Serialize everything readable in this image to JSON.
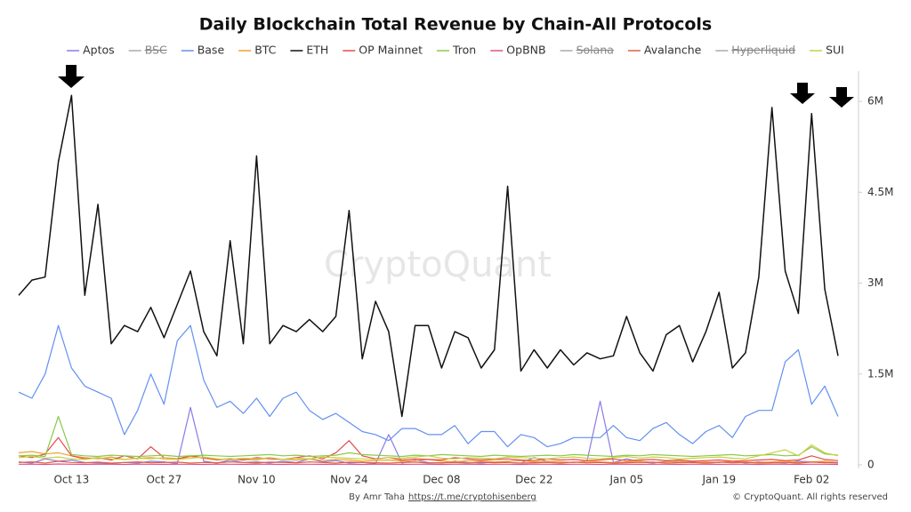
{
  "chart_data": {
    "type": "line",
    "title": "Daily Blockchain Total Revenue by Chain-All Protocols",
    "watermark": "CryptoQuant",
    "credit": "By Amr Taha",
    "credit_link": "https://t.me/cryptohisenberg",
    "copyright": "© CryptoQuant. All rights reserved",
    "grid": false,
    "legend": "top",
    "ylim": [
      0,
      6500000
    ],
    "yticks": [
      0,
      {
        "value": 1500000,
        "label": "1.5M"
      },
      {
        "value": 3000000,
        "label": "3M"
      },
      {
        "value": 4500000,
        "label": "4.5M"
      },
      {
        "value": 6000000,
        "label": "6M"
      }
    ],
    "categories": [
      null,
      null,
      null,
      null,
      "Oct 13",
      null,
      null,
      null,
      null,
      null,
      null,
      "Oct 27",
      null,
      null,
      null,
      null,
      null,
      null,
      "Nov 10",
      null,
      null,
      null,
      null,
      null,
      null,
      "Nov 24",
      null,
      null,
      null,
      null,
      null,
      null,
      "Dec 08",
      null,
      null,
      null,
      null,
      null,
      null,
      "Dec 22",
      null,
      null,
      null,
      null,
      null,
      null,
      "Jan 05",
      null,
      null,
      null,
      null,
      null,
      null,
      "Jan 19",
      null,
      null,
      null,
      null,
      null,
      null,
      "Feb 02",
      null,
      null
    ],
    "series": [
      {
        "name": "Aptos",
        "color": "#8c7ae6",
        "values": [
          50000,
          30000,
          100000,
          60000,
          80000,
          40000,
          30000,
          20000,
          40000,
          30000,
          60000,
          50000,
          20000,
          950000,
          60000,
          30000,
          80000,
          40000,
          50000,
          30000,
          60000,
          40000,
          100000,
          50000,
          70000,
          30000,
          40000,
          20000,
          500000,
          30000,
          80000,
          40000,
          30000,
          60000,
          40000,
          30000,
          50000,
          40000,
          30000,
          120000,
          60000,
          50000,
          40000,
          60000,
          1050000,
          40000,
          100000,
          50000,
          30000,
          60000,
          40000,
          50000,
          30000,
          40000,
          60000,
          30000,
          50000,
          40000,
          30000,
          60000,
          50000,
          40000,
          30000
        ]
      },
      {
        "name": "BSC",
        "color": "#aaaaaa",
        "hidden": true
      },
      {
        "name": "Base",
        "color": "#6390f0",
        "values": [
          1200000,
          1100000,
          1500000,
          2300000,
          1600000,
          1300000,
          1200000,
          1100000,
          500000,
          900000,
          1500000,
          1000000,
          2050000,
          2300000,
          1400000,
          950000,
          1050000,
          850000,
          1100000,
          800000,
          1100000,
          1200000,
          900000,
          750000,
          850000,
          700000,
          550000,
          500000,
          400000,
          600000,
          600000,
          500000,
          500000,
          650000,
          350000,
          550000,
          550000,
          300000,
          500000,
          450000,
          300000,
          350000,
          450000,
          450000,
          450000,
          650000,
          450000,
          400000,
          600000,
          700000,
          500000,
          350000,
          550000,
          650000,
          450000,
          800000,
          900000,
          900000,
          1700000,
          1900000,
          1000000,
          1300000,
          800000
        ]
      },
      {
        "name": "BTC",
        "color": "#f0a030",
        "values": [
          200000,
          220000,
          180000,
          200000,
          150000,
          120000,
          100000,
          130000,
          90000,
          110000,
          120000,
          100000,
          90000,
          140000,
          110000,
          80000,
          100000,
          90000,
          80000,
          120000,
          90000,
          80000,
          100000,
          70000,
          90000,
          80000,
          60000,
          70000,
          80000,
          60000,
          70000,
          90000,
          60000,
          50000,
          70000,
          60000,
          50000,
          60000,
          70000,
          50000,
          60000,
          50000,
          40000,
          60000,
          50000,
          40000,
          50000,
          60000,
          40000,
          50000,
          60000,
          40000,
          50000,
          40000,
          60000,
          50000,
          40000,
          50000,
          60000,
          40000,
          50000,
          60000,
          40000
        ]
      },
      {
        "name": "ETH",
        "color": "#111111",
        "values": [
          2800000,
          3050000,
          3100000,
          5000000,
          6100000,
          2800000,
          4300000,
          2000000,
          2300000,
          2200000,
          2600000,
          2100000,
          2650000,
          3200000,
          2200000,
          1800000,
          3700000,
          2000000,
          5100000,
          2000000,
          2300000,
          2200000,
          2400000,
          2200000,
          2450000,
          4200000,
          1750000,
          2700000,
          2200000,
          800000,
          2300000,
          2300000,
          1600000,
          2200000,
          2100000,
          1600000,
          1900000,
          4600000,
          1550000,
          1900000,
          1600000,
          1900000,
          1650000,
          1850000,
          1750000,
          1800000,
          2450000,
          1850000,
          1550000,
          2150000,
          2300000,
          1700000,
          2200000,
          2850000,
          1600000,
          1850000,
          3100000,
          5900000,
          3200000,
          2500000,
          5800000,
          2900000,
          1800000
        ]
      },
      {
        "name": "OP Mainnet",
        "color": "#e84848",
        "values": [
          150000,
          120000,
          180000,
          450000,
          150000,
          100000,
          120000,
          80000,
          150000,
          100000,
          300000,
          120000,
          100000,
          150000,
          120000,
          90000,
          100000,
          80000,
          120000,
          100000,
          90000,
          120000,
          150000,
          100000,
          200000,
          400000,
          150000,
          100000,
          120000,
          80000,
          100000,
          90000,
          80000,
          120000,
          100000,
          80000,
          90000,
          100000,
          80000,
          70000,
          100000,
          80000,
          90000,
          70000,
          80000,
          100000,
          70000,
          80000,
          90000,
          70000,
          80000,
          60000,
          70000,
          80000,
          60000,
          70000,
          80000,
          90000,
          70000,
          80000,
          150000,
          90000,
          70000
        ]
      },
      {
        "name": "Tron",
        "color": "#8cc84b",
        "values": [
          150000,
          160000,
          140000,
          800000,
          170000,
          150000,
          140000,
          160000,
          150000,
          140000,
          150000,
          160000,
          140000,
          150000,
          160000,
          150000,
          140000,
          150000,
          160000,
          170000,
          150000,
          160000,
          140000,
          150000,
          160000,
          200000,
          170000,
          160000,
          150000,
          140000,
          160000,
          150000,
          170000,
          160000,
          150000,
          140000,
          160000,
          150000,
          140000,
          150000,
          160000,
          150000,
          170000,
          160000,
          150000,
          140000,
          160000,
          150000,
          170000,
          160000,
          150000,
          140000,
          150000,
          160000,
          170000,
          150000,
          160000,
          170000,
          150000,
          160000,
          300000,
          180000,
          160000
        ]
      },
      {
        "name": "OpBNB",
        "color": "#e0508c",
        "values": [
          10000,
          12000,
          8000,
          15000,
          10000,
          9000,
          11000,
          10000,
          8000,
          12000,
          10000,
          9000,
          11000,
          10000,
          8000,
          12000,
          10000,
          9000,
          11000,
          10000,
          8000,
          12000,
          10000,
          9000,
          11000,
          10000,
          8000,
          12000,
          10000,
          9000,
          11000,
          10000,
          8000,
          12000,
          10000,
          9000,
          11000,
          10000,
          8000,
          12000,
          10000,
          9000,
          11000,
          10000,
          8000,
          12000,
          10000,
          9000,
          11000,
          10000,
          8000,
          12000,
          10000,
          9000,
          11000,
          10000,
          8000,
          12000,
          10000,
          9000,
          11000,
          10000,
          8000
        ]
      },
      {
        "name": "Solana",
        "color": "#aaaaaa",
        "hidden": true
      },
      {
        "name": "Avalanche",
        "color": "#e06040",
        "values": [
          40000,
          50000,
          30000,
          60000,
          40000,
          35000,
          45000,
          30000,
          40000,
          50000,
          35000,
          40000,
          45000,
          30000,
          40000,
          35000,
          50000,
          40000,
          30000,
          45000,
          40000,
          35000,
          50000,
          40000,
          30000,
          45000,
          40000,
          35000,
          30000,
          40000,
          45000,
          30000,
          35000,
          40000,
          30000,
          45000,
          35000,
          40000,
          30000,
          35000,
          40000,
          30000,
          45000,
          35000,
          40000,
          30000,
          35000,
          40000,
          45000,
          30000,
          35000,
          40000,
          30000,
          45000,
          35000,
          40000,
          30000,
          35000,
          40000,
          30000,
          45000,
          35000,
          40000
        ]
      },
      {
        "name": "Hyperliquid",
        "color": "#aaaaaa",
        "hidden": true
      },
      {
        "name": "SUI",
        "color": "#c8d040",
        "values": [
          120000,
          140000,
          110000,
          130000,
          100000,
          90000,
          120000,
          100000,
          90000,
          110000,
          100000,
          120000,
          90000,
          110000,
          130000,
          100000,
          90000,
          110000,
          100000,
          120000,
          90000,
          110000,
          100000,
          130000,
          120000,
          110000,
          100000,
          90000,
          120000,
          110000,
          130000,
          150000,
          110000,
          100000,
          120000,
          110000,
          100000,
          130000,
          120000,
          110000,
          100000,
          120000,
          130000,
          110000,
          100000,
          120000,
          140000,
          110000,
          130000,
          120000,
          100000,
          110000,
          120000,
          130000,
          110000,
          100000,
          150000,
          200000,
          250000,
          150000,
          330000,
          200000,
          150000
        ]
      }
    ]
  }
}
